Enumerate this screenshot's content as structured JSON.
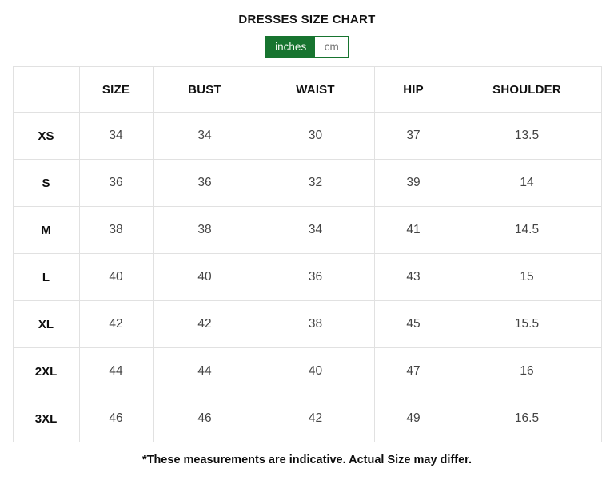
{
  "title": "DRESSES SIZE CHART",
  "unit_toggle": {
    "options": [
      {
        "label": "inches",
        "selected": true
      },
      {
        "label": "cm",
        "selected": false
      }
    ]
  },
  "table": {
    "columns": [
      "",
      "SIZE",
      "BUST",
      "WAIST",
      "HIP",
      "SHOULDER"
    ],
    "rows": [
      {
        "label": "XS",
        "values": [
          "34",
          "34",
          "30",
          "37",
          "13.5"
        ]
      },
      {
        "label": "S",
        "values": [
          "36",
          "36",
          "32",
          "39",
          "14"
        ]
      },
      {
        "label": "M",
        "values": [
          "38",
          "38",
          "34",
          "41",
          "14.5"
        ]
      },
      {
        "label": "L",
        "values": [
          "40",
          "40",
          "36",
          "43",
          "15"
        ]
      },
      {
        "label": "XL",
        "values": [
          "42",
          "42",
          "38",
          "45",
          "15.5"
        ]
      },
      {
        "label": "2XL",
        "values": [
          "44",
          "44",
          "40",
          "47",
          "16"
        ]
      },
      {
        "label": "3XL",
        "values": [
          "46",
          "46",
          "42",
          "49",
          "16.5"
        ]
      }
    ]
  },
  "footnote": "*These measurements are indicative. Actual Size may differ.",
  "colors": {
    "accent_green": "#17742f",
    "inactive_unit_text": "#6e6e6e",
    "table_border": "#e1e1e1",
    "value_text": "#444444",
    "heading_text": "#111111"
  }
}
